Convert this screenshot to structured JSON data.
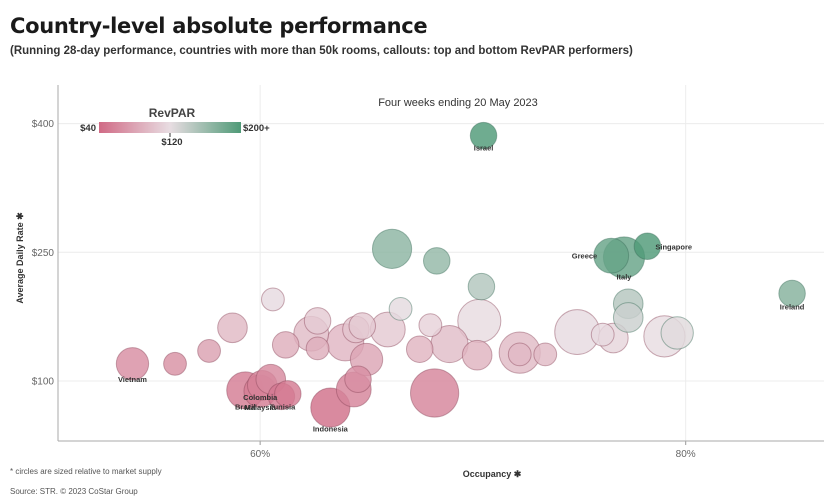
{
  "title": "Country-level absolute performance",
  "subtitle": "(Running 28-day performance, countries with more than 50k rooms, callouts: top and bottom RevPAR performers)",
  "footnote": "* circles are sized relative to market supply",
  "source": "Source: STR. © 2023 CoStar Group",
  "chart_data": {
    "type": "scatter",
    "annotation": "Four weeks ending 20 May 2023",
    "xlabel": "Occupancy",
    "ylabel": "Average Daily Rate",
    "xlim": [
      50.5,
      86.5
    ],
    "ylim": [
      30,
      445
    ],
    "xticks": [
      60,
      80
    ],
    "xtick_labels": [
      "60%",
      "80%"
    ],
    "yticks": [
      100,
      250,
      400
    ],
    "ytick_labels": [
      "$100",
      "$250",
      "$400"
    ],
    "legend": {
      "title": "RevPAR",
      "min_label": "$40",
      "mid_label": "$120",
      "max_label": "$200+",
      "min_color": "#d06a85",
      "mid_color": "#e8dde2",
      "max_color": "#4f9a77"
    },
    "points": [
      {
        "label": "Israel",
        "occupancy": 70.5,
        "adr": 386,
        "revpar": 272,
        "size": 3
      },
      {
        "label": "Singapore",
        "occupancy": 78.2,
        "adr": 257,
        "revpar": 200,
        "size": 3
      },
      {
        "label": "Greece",
        "occupancy": 76.5,
        "adr": 246,
        "revpar": 188,
        "size": 6
      },
      {
        "label": "Italy",
        "occupancy": 77.1,
        "adr": 244,
        "revpar": 188,
        "size": 9
      },
      {
        "label": "Ireland",
        "occupancy": 85.0,
        "adr": 202,
        "revpar": 172,
        "size": 3
      },
      {
        "label": "Vietnam",
        "occupancy": 54.0,
        "adr": 120,
        "revpar": 65,
        "size": 5
      },
      {
        "label": "Malaysia",
        "occupancy": 60.0,
        "adr": 88,
        "revpar": 53,
        "size": 5
      },
      {
        "label": "Brazil",
        "occupancy": 59.3,
        "adr": 89,
        "revpar": 53,
        "size": 7
      },
      {
        "label": "Colombia",
        "occupancy": 60.1,
        "adr": 95,
        "revpar": 57,
        "size": 4
      },
      {
        "label": "Tunisia",
        "occupancy": 61.0,
        "adr": 82,
        "revpar": 50,
        "size": 3
      },
      {
        "label": "Indonesia",
        "occupancy": 63.3,
        "adr": 69,
        "revpar": 44,
        "size": 8
      },
      {
        "label": "",
        "occupancy": 56.0,
        "adr": 120,
        "revpar": 67,
        "size": 2
      },
      {
        "label": "",
        "occupancy": 60.5,
        "adr": 102,
        "revpar": 62,
        "size": 4
      },
      {
        "label": "",
        "occupancy": 61.3,
        "adr": 85,
        "revpar": 52,
        "size": 3
      },
      {
        "label": "",
        "occupancy": 57.6,
        "adr": 135,
        "revpar": 78,
        "size": 2
      },
      {
        "label": "",
        "occupancy": 58.7,
        "adr": 162,
        "revpar": 95,
        "size": 4
      },
      {
        "label": "",
        "occupancy": 60.6,
        "adr": 195,
        "revpar": 118,
        "size": 2
      },
      {
        "label": "",
        "occupancy": 61.2,
        "adr": 142,
        "revpar": 87,
        "size": 3
      },
      {
        "label": "",
        "occupancy": 62.4,
        "adr": 155,
        "revpar": 97,
        "size": 6
      },
      {
        "label": "",
        "occupancy": 62.7,
        "adr": 138,
        "revpar": 87,
        "size": 2
      },
      {
        "label": "",
        "occupancy": 62.7,
        "adr": 170,
        "revpar": 107,
        "size": 3
      },
      {
        "label": "",
        "occupancy": 64.0,
        "adr": 145,
        "revpar": 93,
        "size": 7
      },
      {
        "label": "",
        "occupancy": 64.5,
        "adr": 160,
        "revpar": 103,
        "size": 3
      },
      {
        "label": "",
        "occupancy": 64.8,
        "adr": 164,
        "revpar": 106,
        "size": 3
      },
      {
        "label": "",
        "occupancy": 65.0,
        "adr": 125,
        "revpar": 81,
        "size": 5
      },
      {
        "label": "",
        "occupancy": 64.6,
        "adr": 102,
        "revpar": 66,
        "size": 3
      },
      {
        "label": "",
        "occupancy": 64.4,
        "adr": 90,
        "revpar": 58,
        "size": 6
      },
      {
        "label": "",
        "occupancy": 66.0,
        "adr": 160,
        "revpar": 106,
        "size": 6
      },
      {
        "label": "",
        "occupancy": 66.2,
        "adr": 254,
        "revpar": 168,
        "size": 8
      },
      {
        "label": "",
        "occupancy": 66.6,
        "adr": 184,
        "revpar": 122,
        "size": 2
      },
      {
        "label": "",
        "occupancy": 67.5,
        "adr": 137,
        "revpar": 92,
        "size": 3
      },
      {
        "label": "",
        "occupancy": 68.0,
        "adr": 165,
        "revpar": 112,
        "size": 2
      },
      {
        "label": "",
        "occupancy": 68.3,
        "adr": 240,
        "revpar": 164,
        "size": 3
      },
      {
        "label": "",
        "occupancy": 68.2,
        "adr": 86,
        "revpar": 59,
        "size": 13
      },
      {
        "label": "",
        "occupancy": 68.9,
        "adr": 143,
        "revpar": 98,
        "size": 7
      },
      {
        "label": "",
        "occupancy": 70.3,
        "adr": 170,
        "revpar": 119,
        "size": 10
      },
      {
        "label": "",
        "occupancy": 70.2,
        "adr": 130,
        "revpar": 91,
        "size": 4
      },
      {
        "label": "",
        "occupancy": 70.4,
        "adr": 210,
        "revpar": 148,
        "size": 3
      },
      {
        "label": "",
        "occupancy": 72.2,
        "adr": 133,
        "revpar": 96,
        "size": 9
      },
      {
        "label": "",
        "occupancy": 72.2,
        "adr": 131,
        "revpar": 94,
        "size": 2
      },
      {
        "label": "",
        "occupancy": 73.4,
        "adr": 131,
        "revpar": 96,
        "size": 2
      },
      {
        "label": "",
        "occupancy": 74.9,
        "adr": 157,
        "revpar": 118,
        "size": 11
      },
      {
        "label": "",
        "occupancy": 76.1,
        "adr": 154,
        "revpar": 117,
        "size": 2
      },
      {
        "label": "",
        "occupancy": 76.6,
        "adr": 150,
        "revpar": 115,
        "size": 4
      },
      {
        "label": "",
        "occupancy": 77.3,
        "adr": 190,
        "revpar": 147,
        "size": 4
      },
      {
        "label": "",
        "occupancy": 77.3,
        "adr": 174,
        "revpar": 135,
        "size": 4
      },
      {
        "label": "",
        "occupancy": 79.0,
        "adr": 152,
        "revpar": 120,
        "size": 9
      },
      {
        "label": "",
        "occupancy": 79.6,
        "adr": 156,
        "revpar": 124,
        "size": 5
      }
    ]
  }
}
